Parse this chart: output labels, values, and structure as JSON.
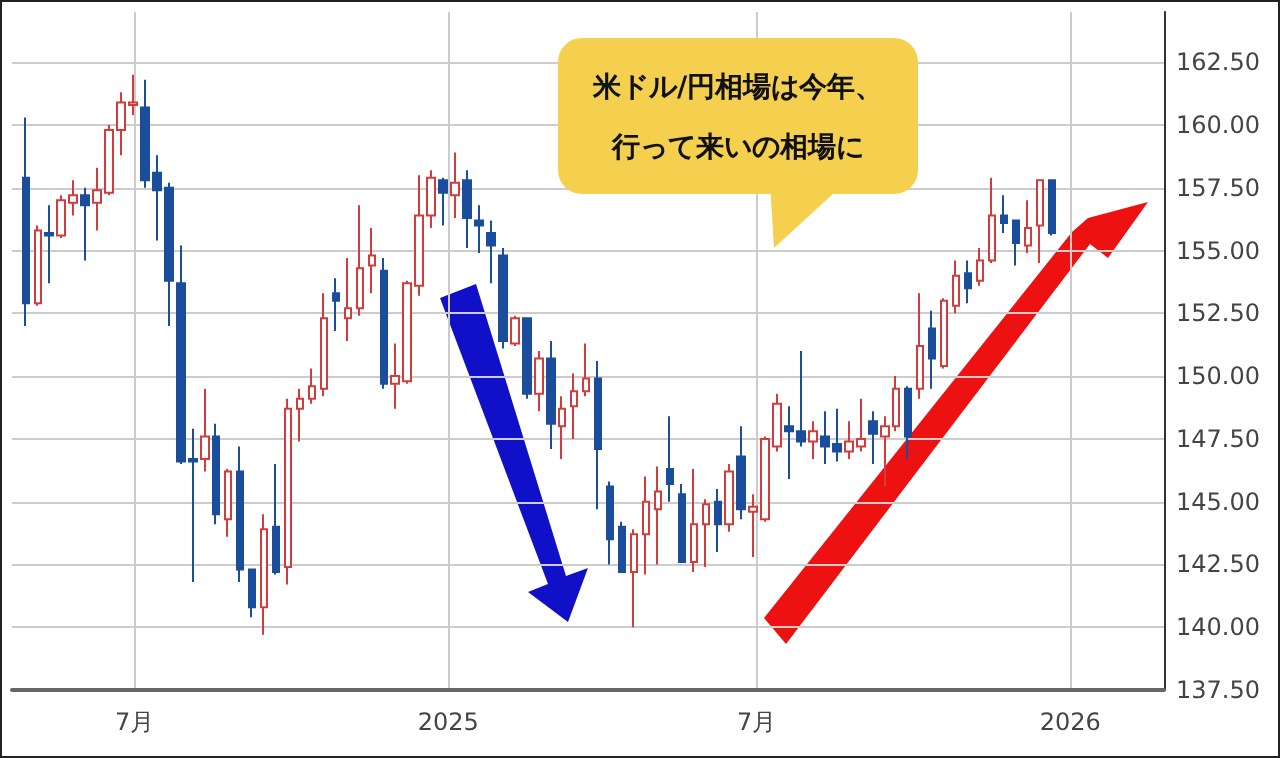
{
  "chart_data": {
    "type": "candlestick",
    "annotations": [
      "米ドル/円相場は今年、",
      "行って来いの相場に"
    ],
    "x": [
      "2024-04-28",
      "2024-05-05",
      "2024-05-12",
      "2024-05-19",
      "2024-05-26",
      "2024-06-02",
      "2024-06-09",
      "2024-06-16",
      "2024-06-23",
      "2024-06-30",
      "2024-07-07",
      "2024-07-14",
      "2024-07-21",
      "2024-07-28",
      "2024-08-04",
      "2024-08-11",
      "2024-08-18",
      "2024-08-25",
      "2024-09-01",
      "2024-09-08",
      "2024-09-15",
      "2024-09-22",
      "2024-09-29",
      "2024-10-06",
      "2024-10-13",
      "2024-10-20",
      "2024-10-27",
      "2024-11-03",
      "2024-11-10",
      "2024-11-17",
      "2024-11-24",
      "2024-12-01",
      "2024-12-08",
      "2024-12-15",
      "2024-12-22",
      "2024-12-29",
      "2025-01-05",
      "2025-01-12",
      "2025-01-19",
      "2025-01-26",
      "2025-02-02",
      "2025-02-09",
      "2025-02-16",
      "2025-02-23",
      "2025-03-02",
      "2025-03-09",
      "2025-03-16",
      "2025-03-23",
      "2025-03-30",
      "2025-04-06",
      "2025-04-13",
      "2025-04-20",
      "2025-04-27",
      "2025-05-04",
      "2025-05-11",
      "2025-05-18",
      "2025-05-25",
      "2025-06-01",
      "2025-06-08",
      "2025-06-15",
      "2025-06-22",
      "2025-06-29",
      "2025-07-06",
      "2025-07-13",
      "2025-07-20",
      "2025-07-27",
      "2025-08-03",
      "2025-08-10",
      "2025-08-17",
      "2025-08-24",
      "2025-08-31",
      "2025-09-07",
      "2025-09-14",
      "2025-09-21",
      "2025-09-28",
      "2025-10-05",
      "2025-10-12",
      "2025-10-19",
      "2025-10-26",
      "2025-11-02",
      "2025-11-09",
      "2025-11-16",
      "2025-11-23",
      "2025-11-30",
      "2025-12-07",
      "2025-12-14",
      "2025-12-21"
    ],
    "ohlc": [
      [
        157.9,
        160.3,
        152.0,
        152.9
      ],
      [
        152.9,
        156.0,
        152.8,
        155.8
      ],
      [
        155.7,
        156.8,
        153.7,
        155.6
      ],
      [
        155.6,
        157.2,
        155.5,
        157.0
      ],
      [
        156.9,
        157.8,
        156.4,
        157.2
      ],
      [
        157.2,
        157.5,
        154.6,
        156.8
      ],
      [
        156.9,
        158.3,
        155.8,
        157.4
      ],
      [
        157.3,
        160.0,
        157.2,
        159.8
      ],
      [
        159.8,
        161.3,
        158.8,
        160.9
      ],
      [
        160.8,
        162.0,
        160.4,
        160.9
      ],
      [
        160.7,
        161.8,
        157.5,
        157.8
      ],
      [
        158.1,
        158.8,
        155.4,
        157.4
      ],
      [
        157.5,
        157.7,
        152.0,
        153.8
      ],
      [
        153.7,
        155.2,
        146.5,
        146.6
      ],
      [
        146.7,
        147.9,
        141.8,
        146.6
      ],
      [
        146.7,
        149.5,
        146.2,
        147.6
      ],
      [
        147.6,
        148.1,
        144.1,
        144.5
      ],
      [
        144.3,
        146.3,
        143.6,
        146.2
      ],
      [
        146.2,
        147.2,
        141.8,
        142.3
      ],
      [
        142.3,
        142.3,
        140.4,
        140.8
      ],
      [
        140.8,
        144.5,
        139.7,
        143.9
      ],
      [
        144.0,
        146.5,
        142.1,
        142.2
      ],
      [
        142.4,
        149.1,
        141.7,
        148.7
      ],
      [
        148.7,
        149.5,
        147.4,
        149.1
      ],
      [
        149.1,
        150.3,
        148.9,
        149.6
      ],
      [
        149.5,
        153.3,
        149.2,
        152.3
      ],
      [
        153.3,
        153.9,
        151.8,
        153.0
      ],
      [
        152.3,
        154.7,
        151.4,
        152.7
      ],
      [
        152.7,
        156.8,
        152.4,
        154.3
      ],
      [
        154.4,
        155.9,
        153.3,
        154.8
      ],
      [
        154.2,
        154.7,
        149.5,
        149.7
      ],
      [
        149.7,
        151.3,
        148.7,
        150.0
      ],
      [
        149.8,
        153.8,
        149.7,
        153.7
      ],
      [
        153.6,
        158.0,
        153.2,
        156.4
      ],
      [
        156.4,
        158.2,
        155.9,
        157.9
      ],
      [
        157.8,
        157.9,
        156.0,
        157.3
      ],
      [
        157.2,
        158.9,
        156.3,
        157.7
      ],
      [
        157.8,
        158.2,
        155.1,
        156.3
      ],
      [
        156.2,
        156.8,
        154.9,
        156.0
      ],
      [
        155.7,
        156.2,
        153.7,
        155.2
      ],
      [
        154.8,
        155.1,
        151.1,
        151.4
      ],
      [
        151.3,
        152.4,
        151.2,
        152.3
      ],
      [
        152.3,
        152.3,
        149.1,
        149.3
      ],
      [
        149.3,
        151.0,
        148.6,
        150.7
      ],
      [
        150.7,
        151.4,
        147.1,
        148.1
      ],
      [
        148.0,
        149.2,
        146.7,
        148.7
      ],
      [
        148.8,
        150.1,
        147.5,
        149.4
      ],
      [
        149.4,
        151.3,
        149.2,
        149.9
      ],
      [
        149.9,
        150.6,
        144.7,
        147.1
      ],
      [
        145.6,
        145.8,
        142.5,
        143.5
      ],
      [
        144.0,
        144.2,
        142.2,
        142.2
      ],
      [
        142.2,
        143.9,
        140.0,
        143.7
      ],
      [
        143.7,
        146.0,
        142.1,
        145.0
      ],
      [
        144.7,
        146.4,
        142.5,
        145.4
      ],
      [
        146.3,
        148.4,
        145.0,
        145.7
      ],
      [
        145.3,
        145.7,
        142.6,
        142.6
      ],
      [
        142.6,
        146.3,
        142.2,
        144.1
      ],
      [
        144.1,
        145.1,
        142.4,
        144.9
      ],
      [
        145.0,
        145.5,
        143.0,
        144.1
      ],
      [
        144.1,
        146.5,
        143.8,
        146.2
      ],
      [
        146.8,
        148.0,
        144.3,
        144.7
      ],
      [
        144.6,
        145.3,
        142.8,
        144.8
      ],
      [
        144.3,
        147.6,
        144.2,
        147.5
      ],
      [
        147.2,
        149.3,
        147.0,
        148.9
      ],
      [
        148.0,
        148.8,
        145.9,
        147.8
      ],
      [
        147.8,
        151.0,
        147.2,
        147.4
      ],
      [
        147.4,
        148.2,
        146.7,
        147.8
      ],
      [
        147.6,
        148.6,
        146.5,
        147.2
      ],
      [
        147.3,
        148.7,
        146.6,
        147.0
      ],
      [
        147.0,
        148.2,
        146.7,
        147.4
      ],
      [
        147.2,
        149.1,
        147.0,
        147.5
      ],
      [
        148.2,
        148.6,
        146.5,
        147.7
      ],
      [
        147.6,
        148.4,
        145.6,
        148.0
      ],
      [
        148.0,
        150.0,
        147.8,
        149.5
      ],
      [
        149.5,
        149.6,
        146.7,
        147.6
      ],
      [
        149.5,
        153.3,
        149.1,
        151.2
      ],
      [
        151.9,
        152.6,
        149.5,
        150.7
      ],
      [
        150.4,
        153.1,
        150.3,
        153.0
      ],
      [
        152.8,
        154.6,
        152.5,
        154.0
      ],
      [
        154.1,
        154.6,
        152.9,
        153.5
      ],
      [
        153.8,
        155.1,
        153.6,
        154.6
      ],
      [
        154.6,
        157.9,
        154.5,
        156.4
      ],
      [
        156.4,
        157.2,
        155.7,
        156.1
      ],
      [
        156.2,
        156.2,
        154.4,
        155.3
      ],
      [
        155.2,
        157.0,
        154.9,
        155.9
      ],
      [
        156.0,
        157.8,
        154.5,
        157.8
      ],
      [
        157.8,
        157.8,
        155.6,
        155.7
      ]
    ],
    "colors": [
      "#1a4d9c",
      "#d23c3c",
      "#1a4d9c",
      "#d23c3c",
      "#d23c3c",
      "#1a4d9c",
      "#d23c3c",
      "#d23c3c",
      "#d23c3c",
      "#d23c3c",
      "#1a4d9c",
      "#1a4d9c",
      "#1a4d9c",
      "#1a4d9c",
      "#1a4d9c",
      "#d23c3c",
      "#1a4d9c",
      "#d23c3c",
      "#1a4d9c",
      "#1a4d9c",
      "#d23c3c",
      "#1a4d9c",
      "#d23c3c",
      "#d23c3c",
      "#d23c3c",
      "#d23c3c",
      "#1a4d9c",
      "#d23c3c",
      "#d23c3c",
      "#d23c3c",
      "#1a4d9c",
      "#d23c3c",
      "#d23c3c",
      "#d23c3c",
      "#d23c3c",
      "#1a4d9c",
      "#d23c3c",
      "#1a4d9c",
      "#1a4d9c",
      "#1a4d9c",
      "#1a4d9c",
      "#d23c3c",
      "#1a4d9c",
      "#d23c3c",
      "#1a4d9c",
      "#d23c3c",
      "#d23c3c",
      "#d23c3c",
      "#1a4d9c",
      "#1a4d9c",
      "#1a4d9c",
      "#d23c3c",
      "#d23c3c",
      "#d23c3c",
      "#1a4d9c",
      "#1a4d9c",
      "#d23c3c",
      "#d23c3c",
      "#1a4d9c",
      "#d23c3c",
      "#1a4d9c",
      "#d23c3c",
      "#d23c3c",
      "#d23c3c",
      "#1a4d9c",
      "#1a4d9c",
      "#d23c3c",
      "#1a4d9c",
      "#1a4d9c",
      "#d23c3c",
      "#d23c3c",
      "#1a4d9c",
      "#d23c3c",
      "#d23c3c",
      "#1a4d9c",
      "#d23c3c",
      "#1a4d9c",
      "#d23c3c",
      "#d23c3c",
      "#1a4d9c",
      "#d23c3c",
      "#d23c3c",
      "#1a4d9c",
      "#1a4d9c",
      "#d23c3c",
      "#d23c3c",
      "#1a4d9c"
    ],
    "xlim": [
      "2024-04-20",
      "2026-02-25"
    ],
    "xticks": [
      {
        "value": "2024-07-01",
        "label": "7月"
      },
      {
        "value": "2025-01-01",
        "label": "2025"
      },
      {
        "value": "2025-07-01",
        "label": "7月"
      },
      {
        "value": "2026-01-01",
        "label": "2026"
      }
    ],
    "ylim": [
      137.5,
      164.5
    ],
    "yticks": [
      {
        "value": 137.5,
        "label": "137.50"
      },
      {
        "value": 140,
        "label": "140.00"
      },
      {
        "value": 142.5,
        "label": "142.50"
      },
      {
        "value": 145,
        "label": "145.00"
      },
      {
        "value": 147.5,
        "label": "147.50"
      },
      {
        "value": 150,
        "label": "150.00"
      },
      {
        "value": 152.5,
        "label": "152.50"
      },
      {
        "value": 155,
        "label": "155.00"
      },
      {
        "value": 157.5,
        "label": "157.50"
      },
      {
        "value": 160,
        "label": "160.00"
      },
      {
        "value": 162.5,
        "label": "162.50"
      }
    ],
    "grid": true
  }
}
